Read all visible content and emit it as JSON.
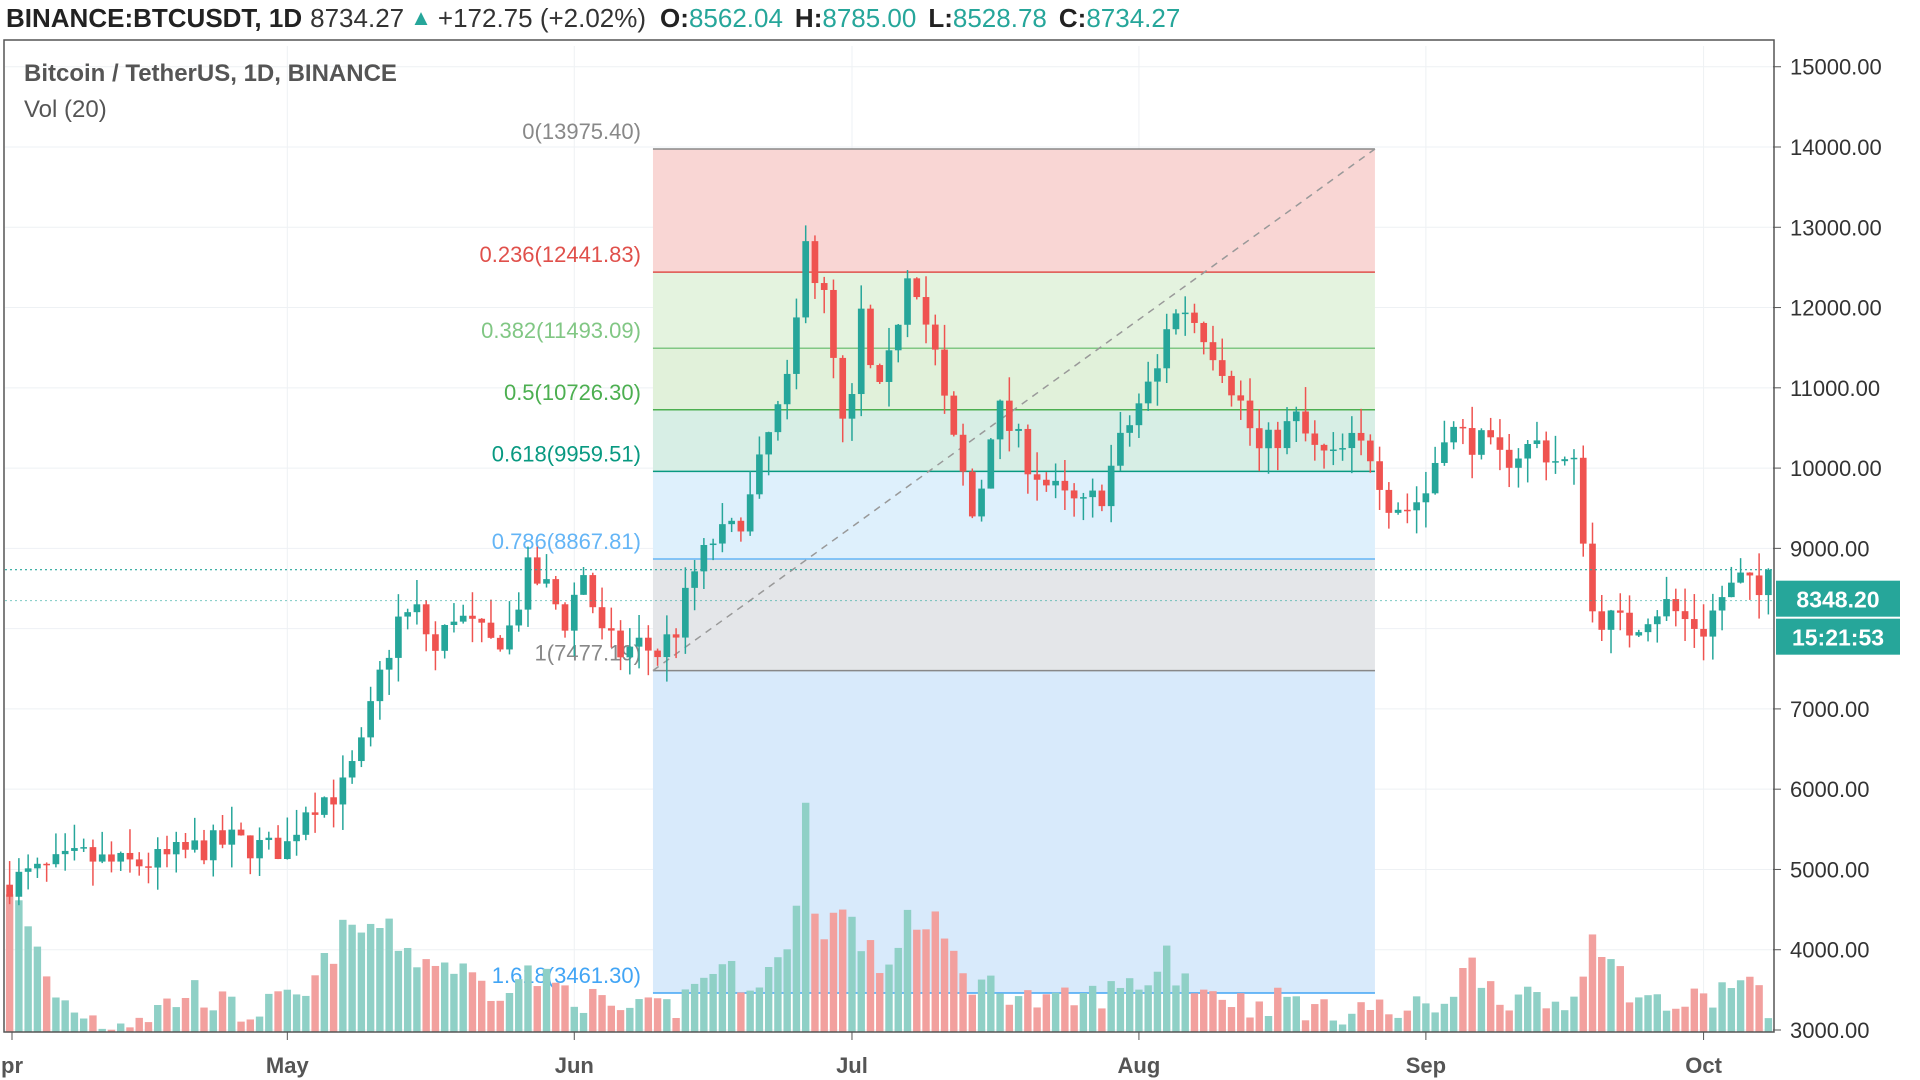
{
  "header": {
    "symbol": "BINANCE:BTCUSDT, 1D",
    "last": "8734.27",
    "change": "+172.75 (+2.02%)",
    "open_label": "O:",
    "open": "8562.04",
    "high_label": "H:",
    "high": "8785.00",
    "low_label": "L:",
    "low": "8528.78",
    "close_label": "C:",
    "close": "8734.27"
  },
  "legend": {
    "title": "Bitcoin / TetherUS, 1D, BINANCE",
    "volume": "Vol (20)"
  },
  "price_labels": {
    "current": "8348.20",
    "countdown": "15:21:53",
    "last_line": 8734.27,
    "current_price": 8348.2
  },
  "colors": {
    "up": "#26a69a",
    "down": "#ef5350",
    "up_vol": "#8fd0c6",
    "down_vol": "#f2a09e",
    "grid": "#eef1f4"
  },
  "chart_data": {
    "type": "candlestick",
    "title": "Bitcoin / TetherUS, 1D, BINANCE",
    "ylim": [
      2500,
      15500
    ],
    "y_ticks": [
      15000,
      14000,
      13000,
      12000,
      11000,
      10000,
      9000,
      7000,
      6000,
      5000,
      4000,
      3000
    ],
    "y_tick_labels": [
      "15000.00",
      "14000.00",
      "13000.00",
      "12000.00",
      "11000.00",
      "10000.00",
      "9000.00",
      "7000.00",
      "6000.00",
      "5000.00",
      "4000.00",
      "3000.00"
    ],
    "x_ticks": [
      {
        "label": "pr",
        "day": 0
      },
      {
        "label": "May",
        "day": 30
      },
      {
        "label": "Jun",
        "day": 61
      },
      {
        "label": "Jul",
        "day": 91
      },
      {
        "label": "Aug",
        "day": 122
      },
      {
        "label": "Sep",
        "day": 153
      },
      {
        "label": "Oct",
        "day": 183
      }
    ],
    "fibonacci": {
      "start_day": 70,
      "end_day": 147,
      "levels": [
        {
          "label": "0(13975.40)",
          "price": 13975.4,
          "color": "#888888",
          "fill": "#f9d4d2"
        },
        {
          "label": "0.236(12441.83)",
          "price": 12441.83,
          "color": "#e0504b",
          "fill": "#e3f2dd"
        },
        {
          "label": "0.382(11493.09)",
          "price": 11493.09,
          "color": "#81c784",
          "fill": "#dff0d8"
        },
        {
          "label": "0.5(10726.30)",
          "price": 10726.3,
          "color": "#4caf50",
          "fill": "#d5ede4"
        },
        {
          "label": "0.618(9959.51)",
          "price": 9959.51,
          "color": "#089981",
          "fill": "#dceffc"
        },
        {
          "label": "0.786(8867.81)",
          "price": 8867.81,
          "color": "#64b5f6",
          "fill": "#e3e5e8"
        },
        {
          "label": "1(7477.19)",
          "price": 7477.19,
          "color": "#888888",
          "fill": "#d6e9fb"
        },
        {
          "label": "1.618(3461.30)",
          "price": 3461.3,
          "color": "#42a5f5",
          "fill": "none"
        }
      ]
    },
    "ohlc_anchors": [
      [
        0,
        4850
      ],
      [
        3,
        4950
      ],
      [
        8,
        5150
      ],
      [
        12,
        5050
      ],
      [
        16,
        5100
      ],
      [
        20,
        5250
      ],
      [
        24,
        5350
      ],
      [
        28,
        5250
      ],
      [
        30,
        5300
      ],
      [
        32,
        5800
      ],
      [
        36,
        6000
      ],
      [
        38,
        6500
      ],
      [
        40,
        7400
      ],
      [
        42,
        8100
      ],
      [
        44,
        8200
      ],
      [
        46,
        7700
      ],
      [
        48,
        8200
      ],
      [
        50,
        8000
      ],
      [
        52,
        7800
      ],
      [
        54,
        8000
      ],
      [
        56,
        8700
      ],
      [
        58,
        8500
      ],
      [
        60,
        8100
      ],
      [
        62,
        8700
      ],
      [
        64,
        7900
      ],
      [
        66,
        7700
      ],
      [
        68,
        7800
      ],
      [
        70,
        7700
      ],
      [
        72,
        8000
      ],
      [
        74,
        8700
      ],
      [
        76,
        9100
      ],
      [
        78,
        9200
      ],
      [
        80,
        9600
      ],
      [
        82,
        10400
      ],
      [
        84,
        11000
      ],
      [
        85,
        11800
      ],
      [
        86,
        13000
      ],
      [
        87,
        12400
      ],
      [
        88,
        12100
      ],
      [
        89,
        11300
      ],
      [
        90,
        10500
      ],
      [
        91,
        10800
      ],
      [
        92,
        11900
      ],
      [
        93,
        11200
      ],
      [
        94,
        10900
      ],
      [
        95,
        11300
      ],
      [
        96,
        11900
      ],
      [
        97,
        12500
      ],
      [
        98,
        12300
      ],
      [
        99,
        11800
      ],
      [
        100,
        11400
      ],
      [
        101,
        10800
      ],
      [
        102,
        10300
      ],
      [
        103,
        9900
      ],
      [
        104,
        9400
      ],
      [
        105,
        9800
      ],
      [
        106,
        10500
      ],
      [
        107,
        10700
      ],
      [
        108,
        10500
      ],
      [
        110,
        10100
      ],
      [
        112,
        9800
      ],
      [
        114,
        9600
      ],
      [
        116,
        9500
      ],
      [
        118,
        9700
      ],
      [
        120,
        10300
      ],
      [
        122,
        10800
      ],
      [
        124,
        11200
      ],
      [
        125,
        11800
      ],
      [
        127,
        12000
      ],
      [
        129,
        11700
      ],
      [
        131,
        11300
      ],
      [
        133,
        10800
      ],
      [
        135,
        10200
      ],
      [
        137,
        10400
      ],
      [
        139,
        10600
      ],
      [
        141,
        10200
      ],
      [
        143,
        10100
      ],
      [
        145,
        10300
      ],
      [
        147,
        10200
      ],
      [
        149,
        9600
      ],
      [
        151,
        9500
      ],
      [
        153,
        9700
      ],
      [
        155,
        10500
      ],
      [
        157,
        10400
      ],
      [
        159,
        10300
      ],
      [
        161,
        10100
      ],
      [
        163,
        10200
      ],
      [
        165,
        10300
      ],
      [
        167,
        10100
      ],
      [
        169,
        10000
      ],
      [
        170,
        9200
      ],
      [
        171,
        8200
      ],
      [
        173,
        8100
      ],
      [
        175,
        8000
      ],
      [
        177,
        8200
      ],
      [
        179,
        8300
      ],
      [
        181,
        8100
      ],
      [
        183,
        8000
      ],
      [
        185,
        8400
      ],
      [
        187,
        8600
      ],
      [
        189,
        8400
      ],
      [
        190,
        8734.27
      ]
    ],
    "volume_anchors": [
      [
        0,
        4800
      ],
      [
        5,
        3400
      ],
      [
        10,
        3100
      ],
      [
        15,
        3200
      ],
      [
        20,
        3500
      ],
      [
        25,
        3200
      ],
      [
        28,
        3300
      ],
      [
        32,
        3400
      ],
      [
        36,
        4200
      ],
      [
        40,
        4300
      ],
      [
        44,
        3900
      ],
      [
        48,
        3800
      ],
      [
        52,
        3500
      ],
      [
        56,
        3700
      ],
      [
        60,
        3500
      ],
      [
        64,
        3300
      ],
      [
        68,
        3200
      ],
      [
        72,
        3300
      ],
      [
        76,
        3800
      ],
      [
        80,
        3600
      ],
      [
        84,
        3900
      ],
      [
        85,
        4700
      ],
      [
        86,
        5800
      ],
      [
        87,
        4400
      ],
      [
        88,
        4300
      ],
      [
        90,
        4500
      ],
      [
        92,
        4100
      ],
      [
        94,
        3800
      ],
      [
        96,
        4000
      ],
      [
        97,
        4600
      ],
      [
        98,
        4200
      ],
      [
        100,
        4300
      ],
      [
        102,
        3900
      ],
      [
        104,
        3600
      ],
      [
        108,
        3500
      ],
      [
        112,
        3300
      ],
      [
        116,
        3400
      ],
      [
        120,
        3500
      ],
      [
        124,
        3700
      ],
      [
        125,
        4000
      ],
      [
        126,
        3700
      ],
      [
        130,
        3500
      ],
      [
        134,
        3300
      ],
      [
        138,
        3400
      ],
      [
        142,
        3200
      ],
      [
        146,
        3300
      ],
      [
        150,
        3200
      ],
      [
        154,
        3300
      ],
      [
        158,
        3800
      ],
      [
        162,
        3400
      ],
      [
        166,
        3300
      ],
      [
        169,
        3400
      ],
      [
        171,
        4300
      ],
      [
        173,
        3800
      ],
      [
        176,
        3400
      ],
      [
        180,
        3300
      ],
      [
        184,
        3400
      ],
      [
        186,
        3600
      ],
      [
        188,
        3600
      ],
      [
        190,
        3200
      ]
    ]
  }
}
